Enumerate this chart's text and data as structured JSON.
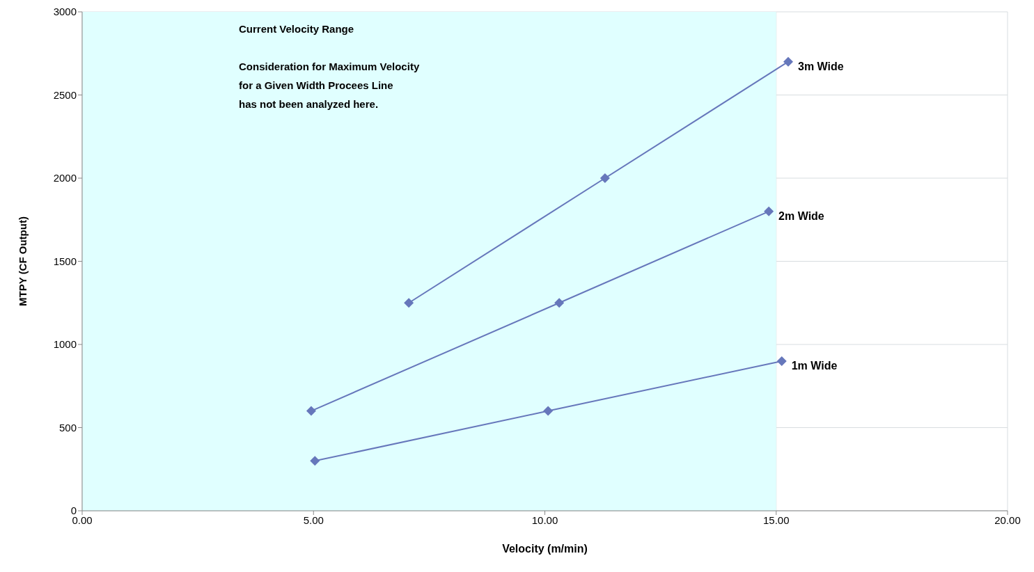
{
  "chart_data": {
    "type": "line",
    "xlabel": "Velocity (m/min)",
    "ylabel": "MTPY (CF Output)",
    "xlim": [
      0,
      20
    ],
    "xticks": [
      {
        "value": 0,
        "label": "0.00"
      },
      {
        "value": 5,
        "label": "5.00"
      },
      {
        "value": 10,
        "label": "10.00"
      },
      {
        "value": 15,
        "label": "15.00"
      },
      {
        "value": 20,
        "label": "20.00"
      }
    ],
    "ylim": [
      0,
      3000
    ],
    "yticks": [
      0,
      500,
      1000,
      1500,
      2000,
      2500,
      3000
    ],
    "grid": true,
    "marker": "diamond",
    "line_style": "solid",
    "bands": [
      {
        "axis": "x",
        "from": 0,
        "to": 15,
        "label": "Current Velocity Range",
        "color": "#e0ffff"
      }
    ],
    "annotations": [
      "Consideration for Maximum Velocity\nfor a Given Width Procees Line\nhas not been analyzed here."
    ],
    "series": [
      {
        "name": "1m Wide",
        "color": "#6677bb",
        "x": [
          5.03,
          10.07,
          15.12
        ],
        "values": [
          300,
          600,
          900
        ]
      },
      {
        "name": "2m Wide",
        "color": "#6677bb",
        "x": [
          4.95,
          10.31,
          14.84
        ],
        "values": [
          600,
          1250,
          1800
        ]
      },
      {
        "name": "3m Wide",
        "color": "#6677bb",
        "x": [
          7.06,
          11.3,
          15.26
        ],
        "values": [
          1250,
          2000,
          2700
        ]
      }
    ]
  }
}
